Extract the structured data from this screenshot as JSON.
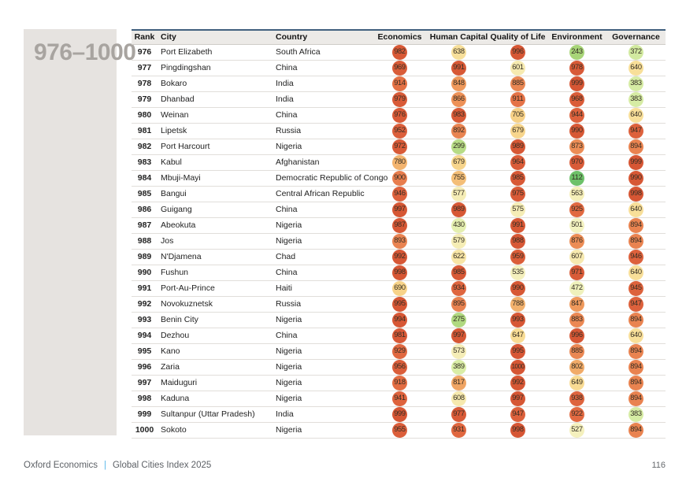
{
  "page": {
    "rank_range": "976–1000",
    "footer": {
      "brand": "Oxford Economics",
      "separator": "|",
      "report": "Global Cities Index 2025",
      "page_number": "116"
    }
  },
  "colors": {
    "accent_navy": "#41607e",
    "pipe_blue": "#5ab9e9",
    "panel_gray": "#e6e3e0",
    "rank_label_gray": "#a8a4a0",
    "header_bg": "#eceae7"
  },
  "table": {
    "headers": [
      "Rank",
      "City",
      "Country",
      "Economics",
      "Human Capital",
      "Quality of Life",
      "Environment",
      "Governance"
    ],
    "score_columns": [
      "Economics",
      "Human Capital",
      "Quality of Life",
      "Environment",
      "Governance"
    ],
    "rows": [
      {
        "rank": "976",
        "city": "Port Elizabeth",
        "country": "South Africa",
        "scores": [
          982,
          638,
          996,
          243,
          372
        ]
      },
      {
        "rank": "977",
        "city": "Pingdingshan",
        "country": "China",
        "scores": [
          969,
          991,
          601,
          978,
          640
        ]
      },
      {
        "rank": "978",
        "city": "Bokaro",
        "country": "India",
        "scores": [
          914,
          848,
          885,
          999,
          383
        ]
      },
      {
        "rank": "979",
        "city": "Dhanbad",
        "country": "India",
        "scores": [
          979,
          866,
          911,
          968,
          383
        ]
      },
      {
        "rank": "980",
        "city": "Weinan",
        "country": "China",
        "scores": [
          976,
          983,
          705,
          944,
          640
        ]
      },
      {
        "rank": "981",
        "city": "Lipetsk",
        "country": "Russia",
        "scores": [
          952,
          892,
          679,
          990,
          947
        ]
      },
      {
        "rank": "982",
        "city": "Port Harcourt",
        "country": "Nigeria",
        "scores": [
          972,
          299,
          989,
          873,
          894
        ]
      },
      {
        "rank": "983",
        "city": "Kabul",
        "country": "Afghanistan",
        "scores": [
          780,
          679,
          964,
          970,
          999
        ]
      },
      {
        "rank": "984",
        "city": "Mbuji-Mayi",
        "country": "Democratic Republic of Congo",
        "scores": [
          900,
          755,
          985,
          112,
          990
        ]
      },
      {
        "rank": "985",
        "city": "Bangui",
        "country": "Central African Republic",
        "scores": [
          946,
          577,
          975,
          563,
          998
        ]
      },
      {
        "rank": "986",
        "city": "Guigang",
        "country": "China",
        "scores": [
          997,
          989,
          575,
          925,
          640
        ]
      },
      {
        "rank": "987",
        "city": "Abeokuta",
        "country": "Nigeria",
        "scores": [
          987,
          430,
          991,
          501,
          894
        ]
      },
      {
        "rank": "988",
        "city": "Jos",
        "country": "Nigeria",
        "scores": [
          893,
          579,
          988,
          876,
          894
        ]
      },
      {
        "rank": "989",
        "city": "N'Djamena",
        "country": "Chad",
        "scores": [
          992,
          622,
          959,
          607,
          946
        ]
      },
      {
        "rank": "990",
        "city": "Fushun",
        "country": "China",
        "scores": [
          998,
          985,
          535,
          971,
          640
        ]
      },
      {
        "rank": "991",
        "city": "Port-Au-Prince",
        "country": "Haiti",
        "scores": [
          690,
          934,
          990,
          472,
          945
        ]
      },
      {
        "rank": "992",
        "city": "Novokuznetsk",
        "country": "Russia",
        "scores": [
          995,
          895,
          788,
          847,
          947
        ]
      },
      {
        "rank": "993",
        "city": "Benin City",
        "country": "Nigeria",
        "scores": [
          994,
          275,
          993,
          883,
          894
        ]
      },
      {
        "rank": "994",
        "city": "Dezhou",
        "country": "China",
        "scores": [
          981,
          997,
          647,
          996,
          640
        ]
      },
      {
        "rank": "995",
        "city": "Kano",
        "country": "Nigeria",
        "scores": [
          929,
          573,
          995,
          885,
          894
        ]
      },
      {
        "rank": "996",
        "city": "Zaria",
        "country": "Nigeria",
        "scores": [
          956,
          389,
          1000,
          802,
          894
        ]
      },
      {
        "rank": "997",
        "city": "Maiduguri",
        "country": "Nigeria",
        "scores": [
          918,
          817,
          992,
          649,
          894
        ]
      },
      {
        "rank": "998",
        "city": "Kaduna",
        "country": "Nigeria",
        "scores": [
          941,
          608,
          997,
          938,
          894
        ]
      },
      {
        "rank": "999",
        "city": "Sultanpur (Uttar Pradesh)",
        "country": "India",
        "scores": [
          999,
          977,
          947,
          922,
          383
        ]
      },
      {
        "rank": "1000",
        "city": "Sokoto",
        "country": "Nigeria",
        "scores": [
          955,
          931,
          998,
          527,
          894
        ]
      }
    ]
  },
  "score_scale": {
    "description": "score-to-badge-color anchors, low=green good, high=red bad",
    "stops": [
      {
        "value": 100,
        "color": "#68bf68"
      },
      {
        "value": 240,
        "color": "#a7d577"
      },
      {
        "value": 300,
        "color": "#b7dc86"
      },
      {
        "value": 390,
        "color": "#d9eda6"
      },
      {
        "value": 440,
        "color": "#e7f0b2"
      },
      {
        "value": 490,
        "color": "#f3f2c1"
      },
      {
        "value": 560,
        "color": "#f5efba"
      },
      {
        "value": 610,
        "color": "#f6e9ae"
      },
      {
        "value": 650,
        "color": "#f8db92"
      },
      {
        "value": 710,
        "color": "#f6cf85"
      },
      {
        "value": 760,
        "color": "#f4bc75"
      },
      {
        "value": 820,
        "color": "#f0a463"
      },
      {
        "value": 860,
        "color": "#ee9459"
      },
      {
        "value": 895,
        "color": "#e98250"
      },
      {
        "value": 920,
        "color": "#e26b42"
      },
      {
        "value": 955,
        "color": "#db5e3a"
      },
      {
        "value": 1000,
        "color": "#d65634"
      }
    ]
  }
}
